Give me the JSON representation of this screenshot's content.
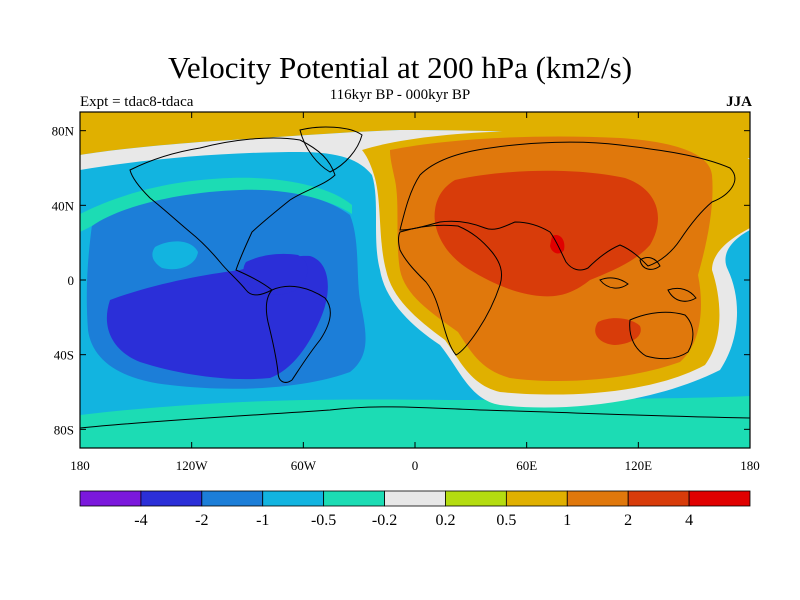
{
  "header": {
    "title": "Velocity Potential at 200 hPa (km2/s)",
    "subtitle": "116kyr BP - 000kyr BP",
    "left_label": "Expt = tdac8-tdaca",
    "right_label": "JJA"
  },
  "map": {
    "projection": "cylindrical-equidistant",
    "lon_range": [
      -180,
      180
    ],
    "lat_range": [
      -90,
      90
    ],
    "lat_ticks": [
      {
        "value": 80,
        "label": "80N"
      },
      {
        "value": 40,
        "label": "40N"
      },
      {
        "value": 0,
        "label": "0"
      },
      {
        "value": -40,
        "label": "40S"
      },
      {
        "value": -80,
        "label": "80S"
      }
    ],
    "lon_ticks": [
      {
        "value": -180,
        "label": "180"
      },
      {
        "value": -120,
        "label": "120W"
      },
      {
        "value": -60,
        "label": "60W"
      },
      {
        "value": 0,
        "label": "0"
      },
      {
        "value": 60,
        "label": "60E"
      },
      {
        "value": 120,
        "label": "120E"
      },
      {
        "value": 180,
        "label": "180"
      }
    ],
    "field_description": "Positive velocity potential anomaly over Eurasia, Africa and Indian Ocean; negative over the Americas and Pacific"
  },
  "colorbar": {
    "colors": [
      "#7b18dc",
      "#2b2fd8",
      "#1c7ed8",
      "#12b4e0",
      "#1cdcb4",
      "#e8e8e8",
      "#b4dc10",
      "#e0b000",
      "#e0780c",
      "#d83c0a",
      "#e00000"
    ],
    "labels": [
      "-4",
      "-2",
      "-1",
      "-0.5",
      "-0.2",
      "0.2",
      "0.5",
      "1",
      "2",
      "4"
    ]
  }
}
